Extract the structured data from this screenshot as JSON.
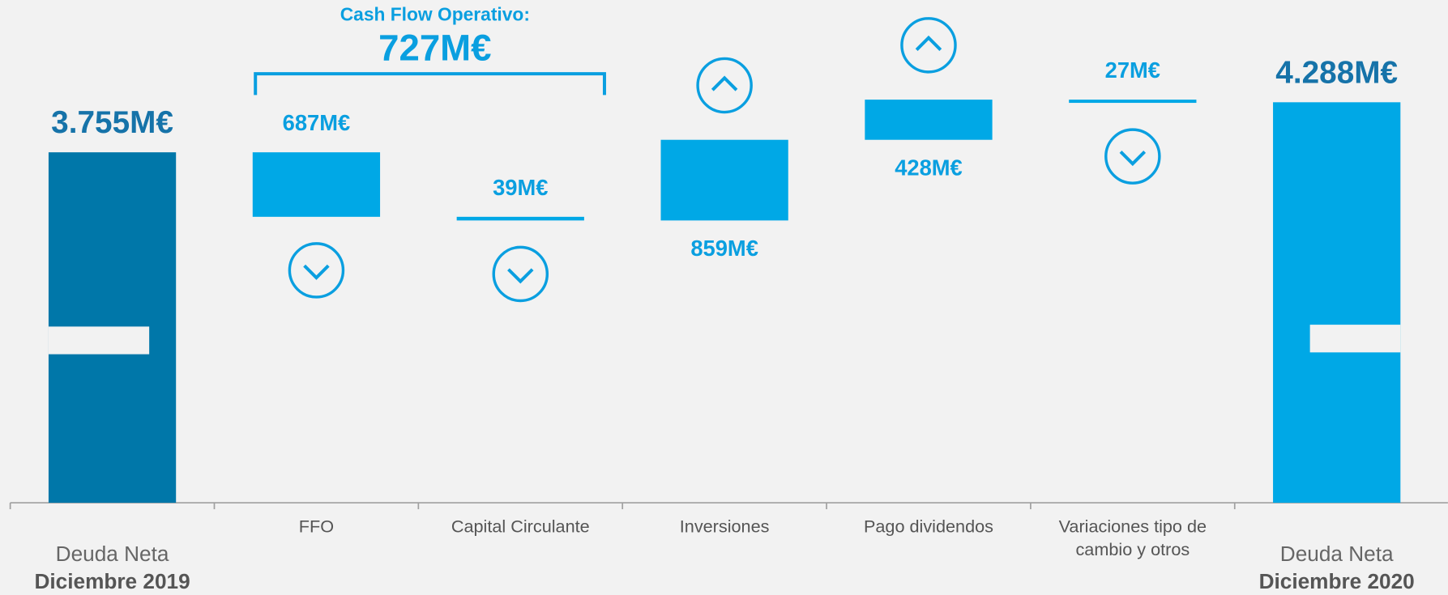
{
  "chart_data": {
    "type": "waterfall",
    "categories": [
      [
        "Deuda Neta",
        "Diciembre 2019"
      ],
      "FFO",
      "Capital Circulante",
      "Inversiones",
      "Pago dividendos",
      [
        "Variaciones tipo de",
        "cambio y otros"
      ],
      [
        "Deuda Neta",
        "Diciembre 2020"
      ]
    ],
    "values": [
      3755,
      687,
      39,
      859,
      428,
      27,
      4288
    ],
    "value_labels": [
      "3.755M€",
      "687M€",
      "39M€",
      "859M€",
      "428M€",
      "27M€",
      "4.288M€"
    ],
    "directions": [
      "total",
      "down",
      "down",
      "up",
      "up",
      "down",
      "total"
    ],
    "colors": [
      "#0077a9",
      "#00a8e6",
      "#00a8e6",
      "#00a8e6",
      "#00a8e6",
      "#00a8e6",
      "#00a8e6"
    ],
    "annotation": {
      "title": "Cash Flow Operativo:",
      "value": 727,
      "value_label": "727M€"
    }
  }
}
